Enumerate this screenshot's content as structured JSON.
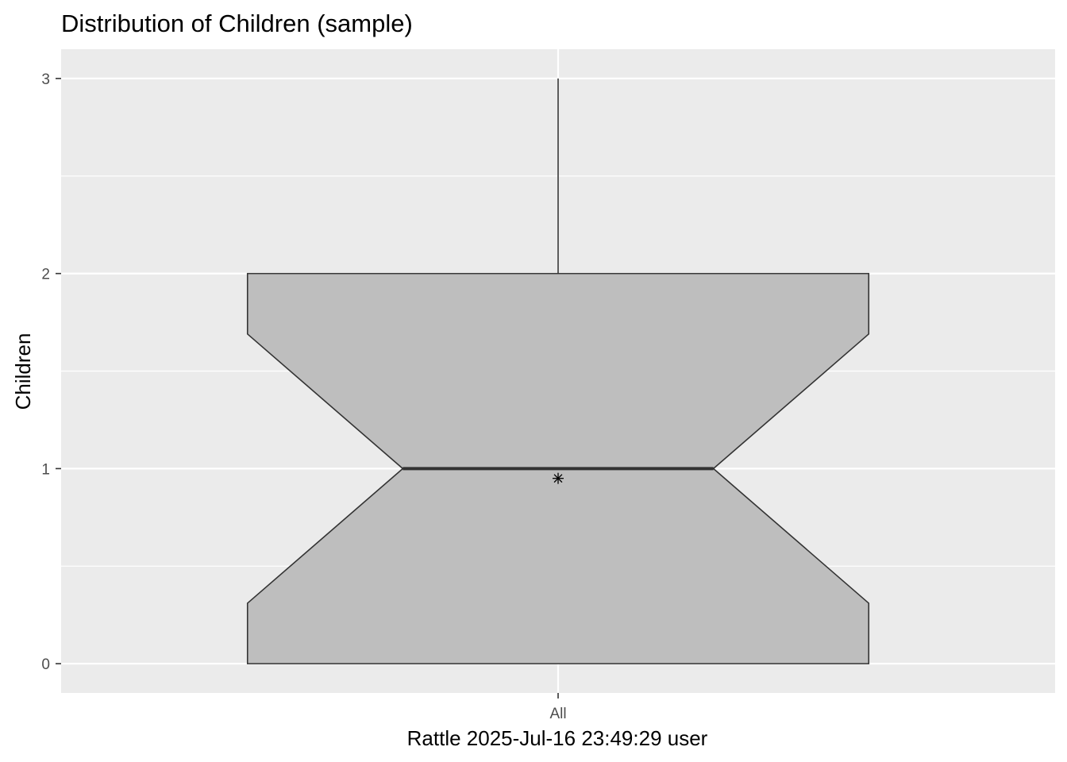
{
  "chart_data": {
    "type": "boxplot",
    "title": "Distribution of Children (sample)",
    "xlabel": "Rattle 2025-Jul-16 23:49:29 user",
    "ylabel": "Children",
    "categories": [
      "All"
    ],
    "ylim": [
      -0.15,
      3.15
    ],
    "y_ticks": [
      0,
      1,
      2,
      3
    ],
    "y_tick_labels": [
      "0",
      "1",
      "2",
      "3"
    ],
    "grid": true,
    "notched": true,
    "boxes": [
      {
        "category": "All",
        "min": 0,
        "q1": 0,
        "median": 1,
        "q3": 2,
        "max": 3,
        "notch_low": 0.31,
        "notch_high": 1.69,
        "mean": 0.95
      }
    ],
    "colors": {
      "panel_background": "#ebebeb",
      "grid": "#ffffff",
      "box_fill": "#bebebe",
      "box_stroke": "#333333",
      "median_line": "#333333",
      "mean_marker": "#000000",
      "tick_text": "#4d4d4d"
    }
  }
}
